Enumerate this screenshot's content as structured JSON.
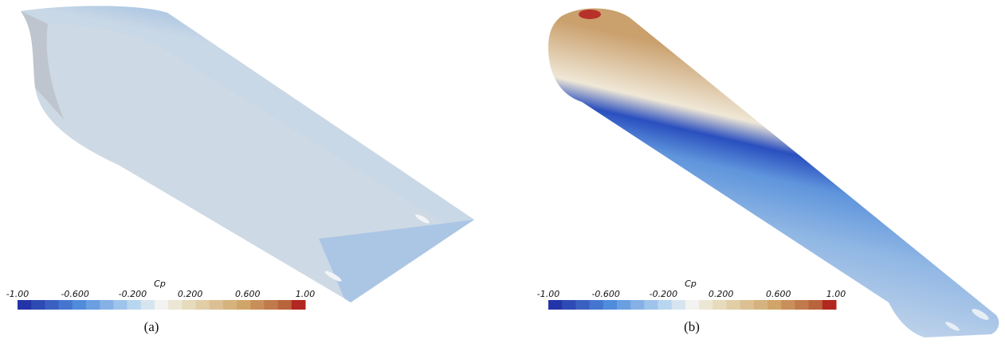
{
  "panels": [
    {
      "caption": "(a)",
      "colorbar": {
        "title": "Cp",
        "tick_labels": [
          "-1.00",
          "-0.600",
          "-0.200",
          "0.200",
          "0.600",
          "1.00"
        ]
      }
    },
    {
      "caption": "(b)",
      "colorbar": {
        "title": "Cp",
        "tick_labels": [
          "-1.00",
          "-0.600",
          "-0.200",
          "0.200",
          "0.600",
          "1.00"
        ]
      }
    }
  ]
}
